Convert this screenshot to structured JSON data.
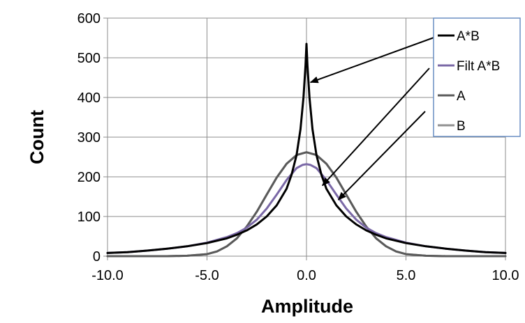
{
  "chart_data": {
    "type": "line",
    "title": "",
    "xlabel": "Amplitude",
    "ylabel": "Count",
    "xlim": [
      -10,
      10
    ],
    "ylim": [
      0,
      600
    ],
    "x_ticks": [
      -10,
      -5,
      0,
      5,
      10
    ],
    "x_tick_labels": [
      "-10.0",
      "-5.0",
      "0.0",
      "5.0",
      "10.0"
    ],
    "y_ticks": [
      0,
      100,
      200,
      300,
      400,
      500,
      600
    ],
    "y_tick_labels": [
      "0",
      "100",
      "200",
      "300",
      "400",
      "500",
      "600"
    ],
    "grid": true,
    "legend_position": "top-right",
    "series": [
      {
        "name": "A*B",
        "color": "#000000",
        "x": [
          -10,
          -9,
          -8,
          -7,
          -6,
          -5,
          -4,
          -3.5,
          -3,
          -2.5,
          -2,
          -1.5,
          -1,
          -0.75,
          -0.5,
          -0.3,
          -0.15,
          -0.05,
          0,
          0.05,
          0.15,
          0.3,
          0.5,
          0.75,
          1,
          1.5,
          2,
          2.5,
          3,
          3.5,
          4,
          5,
          6,
          7,
          8,
          9,
          10
        ],
        "y": [
          8,
          10,
          14,
          19,
          25,
          33,
          45,
          54,
          65,
          80,
          100,
          128,
          170,
          205,
          255,
          320,
          400,
          480,
          535,
          480,
          400,
          320,
          255,
          205,
          170,
          128,
          100,
          80,
          65,
          54,
          45,
          33,
          25,
          19,
          14,
          10,
          8
        ]
      },
      {
        "name": "Filt A*B",
        "color": "#7a68a6",
        "x": [
          -10,
          -9,
          -8,
          -7,
          -6,
          -5,
          -4,
          -3.5,
          -3,
          -2.5,
          -2,
          -1.5,
          -1,
          -0.5,
          -0.2,
          0,
          0.2,
          0.5,
          1,
          1.5,
          2,
          2.5,
          3,
          3.5,
          4,
          5,
          6,
          7,
          8,
          9,
          10
        ],
        "y": [
          8,
          10,
          14,
          19,
          25,
          34,
          48,
          58,
          72,
          92,
          120,
          155,
          192,
          222,
          230,
          232,
          230,
          222,
          192,
          155,
          120,
          92,
          72,
          58,
          48,
          34,
          25,
          19,
          14,
          10,
          8
        ]
      },
      {
        "name": "A",
        "color": "#5a5a5a",
        "x": [
          -10,
          -9,
          -8,
          -7,
          -6,
          -5,
          -4.5,
          -4,
          -3.5,
          -3,
          -2.5,
          -2,
          -1.5,
          -1,
          -0.5,
          0,
          0.5,
          1,
          1.5,
          2,
          2.5,
          3,
          3.5,
          4,
          4.5,
          5,
          6,
          7,
          8,
          9,
          10
        ],
        "y": [
          0,
          0,
          0,
          0,
          1,
          5,
          12,
          25,
          45,
          75,
          112,
          155,
          198,
          233,
          255,
          262,
          255,
          233,
          198,
          155,
          112,
          75,
          45,
          25,
          12,
          5,
          1,
          0,
          0,
          0,
          0
        ]
      },
      {
        "name": "B",
        "color": "#909090",
        "x": [
          -10,
          -9,
          -8,
          -7,
          -6,
          -5,
          -4.5,
          -4,
          -3.5,
          -3,
          -2.5,
          -2,
          -1.5,
          -1,
          -0.5,
          0,
          0.5,
          1,
          1.5,
          2,
          2.5,
          3,
          3.5,
          4,
          4.5,
          5,
          6,
          7,
          8,
          9,
          10
        ],
        "y": [
          0,
          0,
          0,
          0,
          1,
          5,
          12,
          25,
          45,
          75,
          112,
          155,
          198,
          233,
          255,
          262,
          255,
          233,
          198,
          155,
          112,
          75,
          45,
          25,
          12,
          5,
          1,
          0,
          0,
          0,
          0
        ]
      }
    ],
    "annotations": [
      {
        "type": "arrow",
        "from_legend": "A*B",
        "to": [
          0.2,
          438
        ]
      },
      {
        "type": "arrow",
        "from_legend": "Filt A*B",
        "to": [
          0.8,
          178
        ]
      },
      {
        "type": "arrow",
        "from_legend": "B",
        "to": [
          1.6,
          142
        ]
      }
    ]
  }
}
